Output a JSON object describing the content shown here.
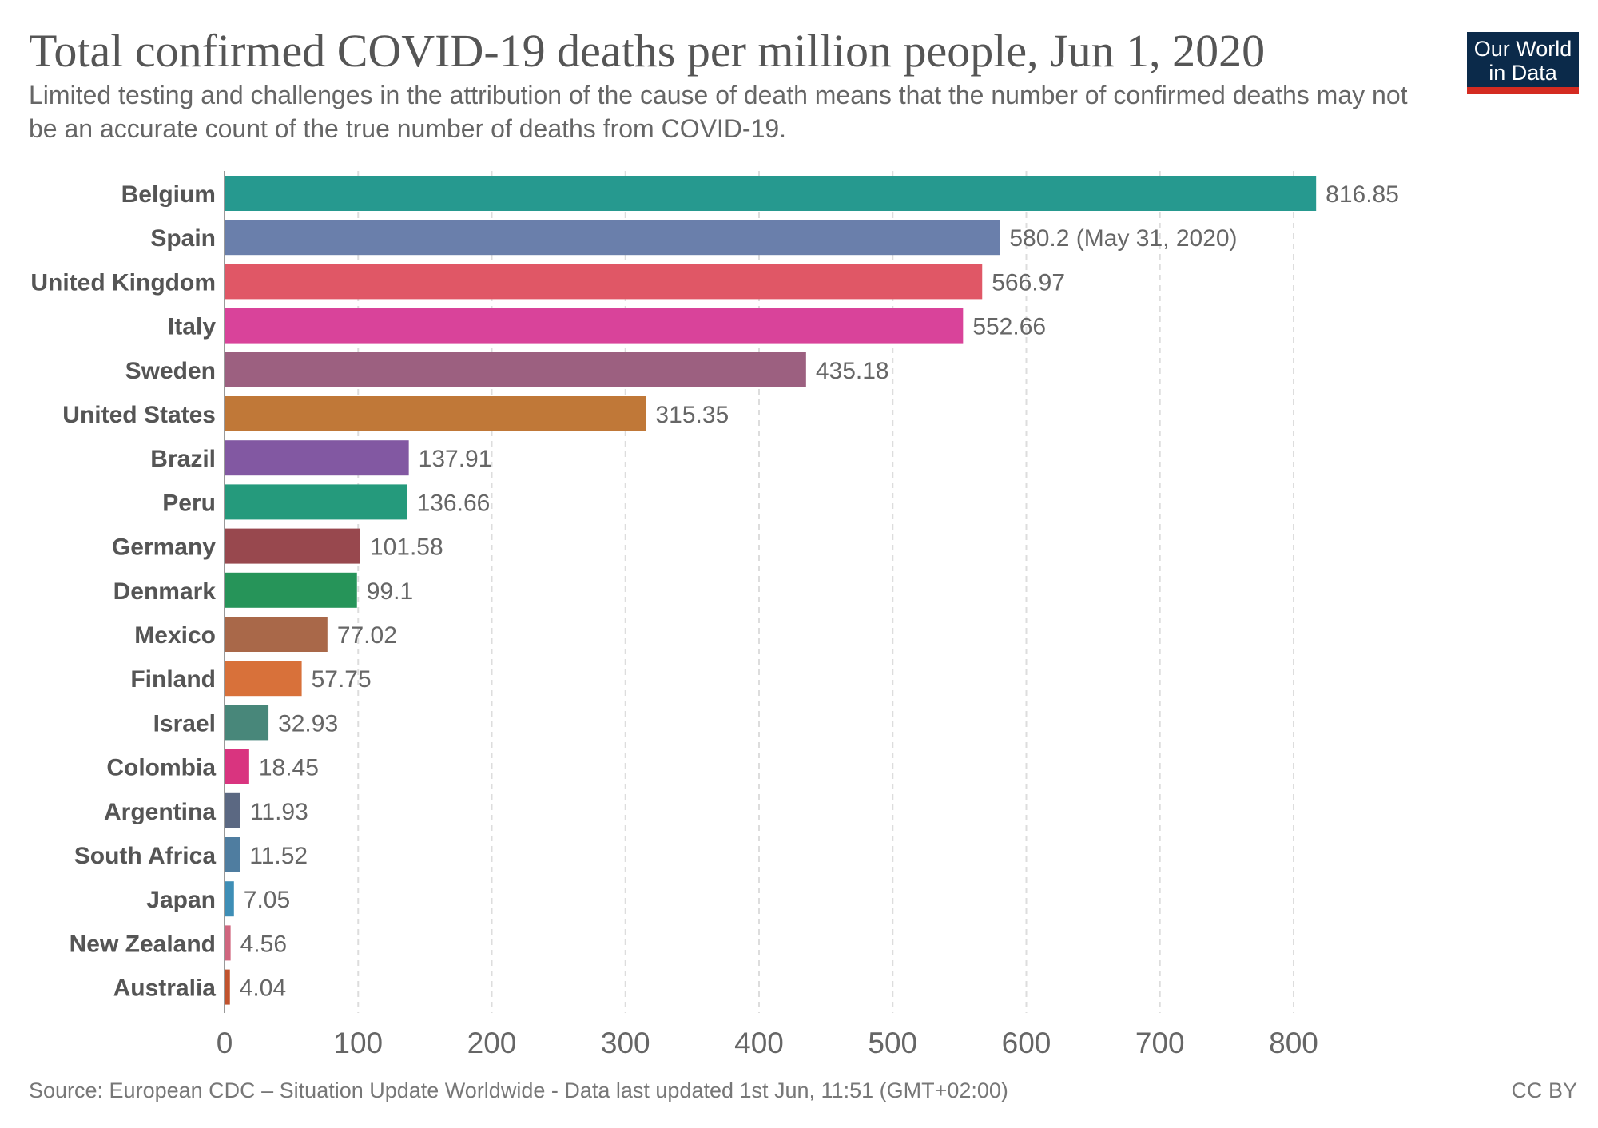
{
  "header": {
    "title": "Total confirmed COVID-19 deaths per million people, Jun 1, 2020",
    "subtitle": "Limited testing and challenges in the attribution of the cause of death means that the number of confirmed deaths may not be an accurate count of the true number of deaths from COVID-19.",
    "logo_line1": "Our World",
    "logo_line2": "in Data"
  },
  "footer": {
    "source": "Source: European CDC – Situation Update Worldwide - Data last updated 1st Jun, 11:51 (GMT+02:00)",
    "license": "CC BY"
  },
  "chart_data": {
    "type": "bar",
    "orientation": "horizontal",
    "categories": [
      "Belgium",
      "Spain",
      "United Kingdom",
      "Italy",
      "Sweden",
      "United States",
      "Brazil",
      "Peru",
      "Germany",
      "Denmark",
      "Mexico",
      "Finland",
      "Israel",
      "Colombia",
      "Argentina",
      "South Africa",
      "Japan",
      "New Zealand",
      "Australia"
    ],
    "values": [
      816.85,
      580.2,
      566.97,
      552.66,
      435.18,
      315.35,
      137.91,
      136.66,
      101.58,
      99.1,
      77.02,
      57.75,
      32.93,
      18.45,
      11.93,
      11.52,
      7.05,
      4.56,
      4.04
    ],
    "value_labels": [
      "816.85",
      "580.2 (May 31, 2020)",
      "566.97",
      "552.66",
      "435.18",
      "315.35",
      "137.91",
      "136.66",
      "101.58",
      "99.1",
      "77.02",
      "57.75",
      "32.93",
      "18.45",
      "11.93",
      "11.52",
      "7.05",
      "4.56",
      "4.04"
    ],
    "colors": [
      "#26998f",
      "#6a7fab",
      "#e05766",
      "#d9439a",
      "#9c6080",
      "#c07838",
      "#8258a2",
      "#259a7c",
      "#98484e",
      "#269459",
      "#a96849",
      "#d8713a",
      "#48877a",
      "#d9347f",
      "#5b6882",
      "#4f7da0",
      "#3e8eb6",
      "#d0667f",
      "#c1532e"
    ],
    "xlim": [
      0,
      850
    ],
    "xticks": [
      0,
      100,
      200,
      300,
      400,
      500,
      600,
      700,
      800
    ],
    "grid": "vertical dashed",
    "legend": "none"
  }
}
